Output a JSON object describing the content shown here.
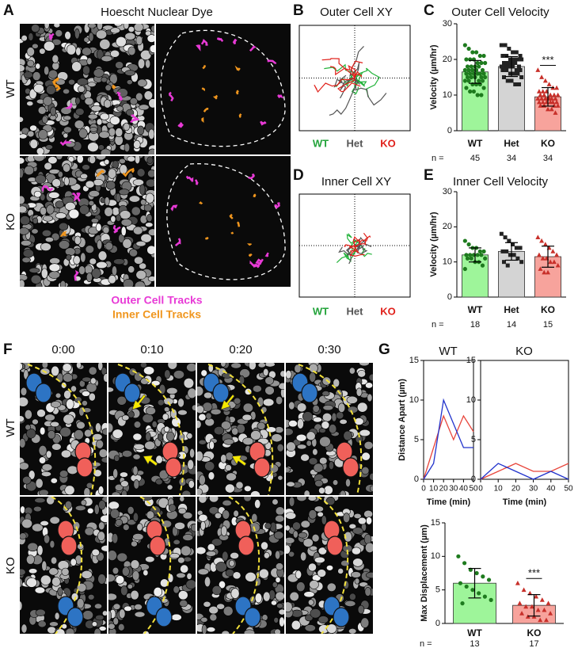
{
  "panels": {
    "A": {
      "letter": "A",
      "title": "Hoescht Nuclear Dye",
      "rows": [
        "WT",
        "KO"
      ],
      "legend": [
        "Outer Cell Tracks",
        "Inner Cell Tracks"
      ]
    },
    "B": {
      "letter": "B",
      "title": "Outer Cell XY",
      "labels": [
        "WT",
        "Het",
        "KO"
      ]
    },
    "D": {
      "letter": "D",
      "title": "Inner Cell XY",
      "labels": [
        "WT",
        "Het",
        "KO"
      ]
    },
    "F": {
      "letter": "F",
      "times": [
        "0:00",
        "0:10",
        "0:20",
        "0:30"
      ],
      "rows": [
        "WT",
        "KO"
      ]
    },
    "G": {
      "letter": "G"
    }
  },
  "chart_data": [
    {
      "type": "bar",
      "panel_label": "C",
      "title": "Outer Cell Velocity",
      "y_label": "Velocity (µm/hr)",
      "categories": [
        "WT",
        "Het",
        "KO"
      ],
      "values": [
        16.5,
        18,
        9.5
      ],
      "errors": [
        3.2,
        2.8,
        2.6
      ],
      "colors": [
        "#9ef59a",
        "#d4d4d4",
        "#f7a39c"
      ],
      "point_colors": [
        "#1e7b1e",
        "#222222",
        "#c8302a"
      ],
      "markers": [
        "circle",
        "square",
        "triangle"
      ],
      "points": [
        [
          24,
          23,
          22,
          22,
          21,
          21,
          20,
          20,
          20,
          19,
          19,
          19,
          18,
          18,
          18,
          18,
          17,
          17,
          17,
          17,
          17,
          16,
          16,
          16,
          16,
          16,
          16,
          15,
          15,
          15,
          15,
          15,
          14,
          14,
          14,
          14,
          13,
          13,
          13,
          12,
          12,
          11,
          11,
          10,
          10
        ],
        [
          24,
          24,
          23,
          22,
          22,
          21,
          21,
          21,
          20,
          20,
          20,
          20,
          19,
          19,
          19,
          19,
          18,
          18,
          18,
          18,
          18,
          17,
          17,
          17,
          17,
          16,
          16,
          16,
          15,
          15,
          14,
          14,
          13,
          13
        ],
        [
          17,
          15,
          14,
          13,
          12,
          12,
          11,
          11,
          11,
          10,
          10,
          10,
          10,
          10,
          9,
          9,
          9,
          9,
          9,
          9,
          9,
          8,
          8,
          8,
          8,
          8,
          8,
          7,
          7,
          7,
          7,
          6,
          6,
          5
        ]
      ],
      "ylim": [
        0,
        30
      ],
      "yticks": [
        0,
        10,
        20,
        30
      ],
      "n_label": "n =",
      "n": [
        45,
        34,
        34
      ],
      "annotations": [
        {
          "text": "***",
          "category": "KO"
        }
      ]
    },
    {
      "type": "bar",
      "panel_label": "E",
      "title": "Inner Cell Velocity",
      "y_label": "Velocity (µm/hr)",
      "categories": [
        "WT",
        "Het",
        "KO"
      ],
      "values": [
        12,
        13,
        11.5
      ],
      "errors": [
        2,
        2.5,
        3
      ],
      "colors": [
        "#9ef59a",
        "#d4d4d4",
        "#f7a39c"
      ],
      "point_colors": [
        "#1e7b1e",
        "#222222",
        "#c8302a"
      ],
      "markers": [
        "circle",
        "square",
        "triangle"
      ],
      "points": [
        [
          16,
          15,
          14,
          14,
          13,
          13,
          12,
          12,
          12,
          12,
          12,
          11,
          11,
          11,
          10,
          10,
          9,
          8
        ],
        [
          18,
          17,
          16,
          15,
          14,
          14,
          13,
          13,
          12,
          12,
          11,
          10,
          10,
          9
        ],
        [
          17,
          16,
          15,
          14,
          13,
          12,
          12,
          11,
          11,
          10,
          10,
          9,
          8,
          7,
          7
        ]
      ],
      "ylim": [
        0,
        30
      ],
      "yticks": [
        0,
        10,
        20,
        30
      ],
      "n_label": "n =",
      "n": [
        18,
        14,
        15
      ],
      "annotations": []
    },
    {
      "type": "line",
      "title": "WT",
      "y_label": "Distance Apart (µm)",
      "x_label": "Time (min)",
      "x": [
        0,
        10,
        20,
        30,
        40,
        50
      ],
      "xlim": [
        0,
        50
      ],
      "xticks": [
        0,
        10,
        20,
        30,
        40,
        50
      ],
      "ylim": [
        0,
        15
      ],
      "yticks": [
        0,
        5,
        10,
        15
      ],
      "series": [
        {
          "color": "#e8463c",
          "values": [
            0,
            4,
            8,
            5,
            8,
            6
          ]
        },
        {
          "color": "#2233cc",
          "values": [
            0,
            2,
            10,
            7,
            4,
            4
          ]
        }
      ]
    },
    {
      "type": "line",
      "title": "KO",
      "x_label": "Time (min)",
      "x": [
        0,
        10,
        20,
        30,
        40,
        50
      ],
      "xlim": [
        0,
        50
      ],
      "xticks": [
        0,
        10,
        20,
        30,
        40,
        50
      ],
      "ylim": [
        0,
        15
      ],
      "yticks": [
        0,
        5,
        10,
        15
      ],
      "series": [
        {
          "color": "#e8463c",
          "values": [
            0,
            1,
            2,
            1,
            1,
            2
          ]
        },
        {
          "color": "#2233cc",
          "values": [
            0,
            2,
            1,
            0,
            1,
            0
          ]
        }
      ]
    },
    {
      "type": "bar",
      "y_label": "Max Displacement (µm)",
      "categories": [
        "WT",
        "KO"
      ],
      "values": [
        6,
        2.7
      ],
      "errors": [
        2.2,
        1.6
      ],
      "colors": [
        "#9ef59a",
        "#f7a39c"
      ],
      "point_colors": [
        "#1e7b1e",
        "#c8302a"
      ],
      "markers": [
        "circle",
        "triangle"
      ],
      "points": [
        [
          10,
          9,
          8,
          7.5,
          7,
          6.5,
          6,
          5.5,
          5,
          4.5,
          4,
          3.5,
          3
        ],
        [
          6,
          5,
          4.5,
          4,
          3.5,
          3,
          3,
          2.5,
          2.5,
          2,
          2,
          1.5,
          1.5,
          1,
          1,
          0.5,
          0.5
        ]
      ],
      "ylim": [
        0,
        15
      ],
      "yticks": [
        0,
        5,
        10,
        15
      ],
      "n_label": "n =",
      "n": [
        13,
        17
      ],
      "annotations": [
        {
          "text": "***",
          "category": "KO"
        }
      ]
    }
  ]
}
